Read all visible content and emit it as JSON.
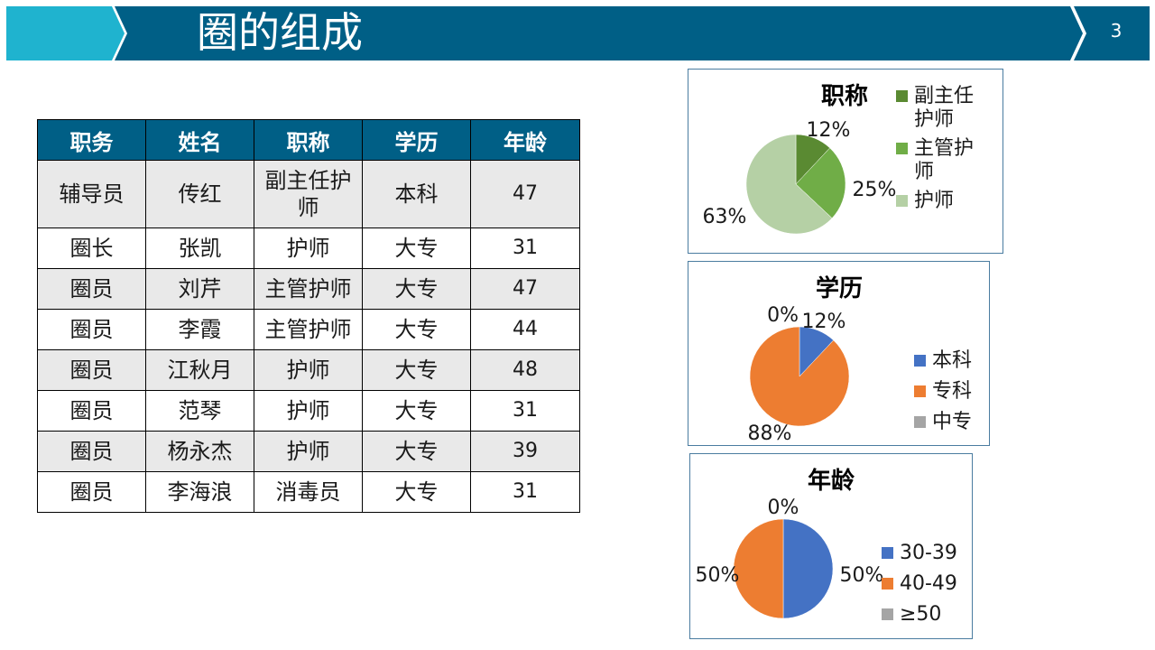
{
  "slide": {
    "title": "圈的组成",
    "page_number": "3",
    "colors": {
      "banner_dark": "#005f86",
      "banner_light": "#1fb3cf",
      "table_header": "#005f86"
    }
  },
  "table": {
    "headers": [
      "职务",
      "姓名",
      "职称",
      "学历",
      "年龄"
    ],
    "rows": [
      [
        "辅导员",
        "传红",
        "副主任护师",
        "本科",
        "47"
      ],
      [
        "圈长",
        "张凯",
        "护师",
        "大专",
        "31"
      ],
      [
        "圈员",
        "刘芹",
        "主管护师",
        "大专",
        "47"
      ],
      [
        "圈员",
        "李霞",
        "主管护师",
        "大专",
        "44"
      ],
      [
        "圈员",
        "江秋月",
        "护师",
        "大专",
        "48"
      ],
      [
        "圈员",
        "范琴",
        "护师",
        "大专",
        "31"
      ],
      [
        "圈员",
        "杨永杰",
        "护师",
        "大专",
        "39"
      ],
      [
        "圈员",
        "李海浪",
        "消毒员",
        "大专",
        "31"
      ]
    ],
    "row0_wrapped_cell": [
      "副主任护",
      "师"
    ]
  },
  "chart_data": [
    {
      "type": "pie",
      "title": "职称",
      "categories": [
        "副主任护师",
        "主管护师",
        "护师"
      ],
      "values": [
        12,
        25,
        63
      ],
      "data_labels": [
        "12%",
        "25%",
        "63%"
      ],
      "colors": [
        "#5a8a32",
        "#70ad47",
        "#b5d0a5"
      ],
      "legend_lines": [
        [
          "副主任",
          "护师"
        ],
        [
          "主管护",
          "师"
        ],
        [
          "护师"
        ]
      ],
      "legend_position": "right"
    },
    {
      "type": "pie",
      "title": "学历",
      "categories": [
        "本科",
        "专科",
        "中专"
      ],
      "values": [
        12,
        88,
        0
      ],
      "data_labels": [
        "12%",
        "88%",
        "0%"
      ],
      "colors": [
        "#4472c4",
        "#ed7d31",
        "#a5a5a5"
      ],
      "legend_position": "right"
    },
    {
      "type": "pie",
      "title": "年龄",
      "categories": [
        "30-39",
        "40-49",
        "≥50"
      ],
      "values": [
        50,
        50,
        0
      ],
      "data_labels": [
        "50%",
        "50%",
        "0%"
      ],
      "colors": [
        "#4472c4",
        "#ed7d31",
        "#a5a5a5"
      ],
      "legend_position": "right"
    }
  ]
}
